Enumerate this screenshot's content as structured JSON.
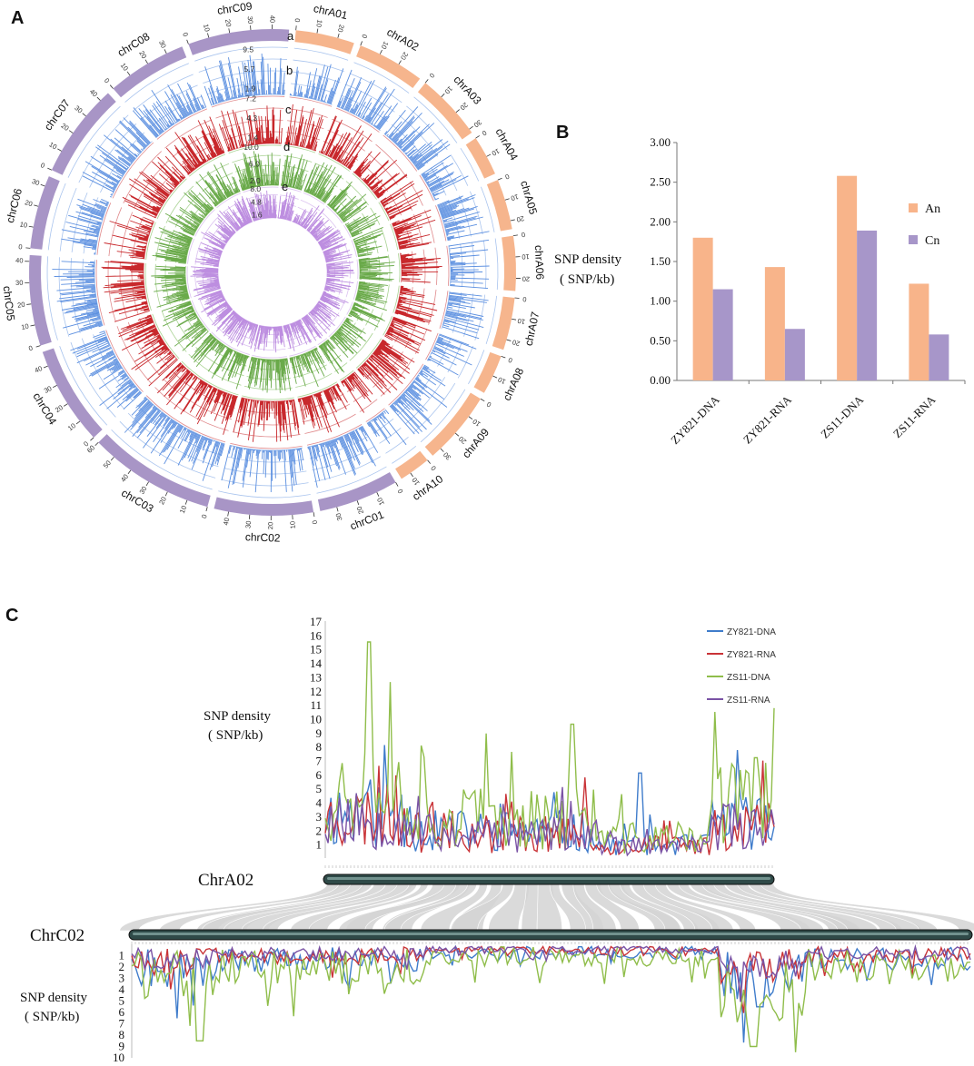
{
  "panels": {
    "A": {
      "letter": "A",
      "title": "",
      "track_letters": [
        "a",
        "b",
        "c",
        "d",
        "e"
      ],
      "chromosomes": [
        {
          "name": "chrA01",
          "group": "An",
          "ticks": [
            0,
            10,
            20
          ]
        },
        {
          "name": "chrA02",
          "group": "An",
          "ticks": [
            0,
            10,
            20
          ]
        },
        {
          "name": "chrA03",
          "group": "An",
          "ticks": [
            0,
            10,
            20,
            30
          ]
        },
        {
          "name": "chrA04",
          "group": "An",
          "ticks": [
            0,
            10
          ]
        },
        {
          "name": "chrA05",
          "group": "An",
          "ticks": [
            0,
            10,
            20
          ]
        },
        {
          "name": "chrA06",
          "group": "An",
          "ticks": [
            0,
            10,
            20
          ]
        },
        {
          "name": "chrA07",
          "group": "An",
          "ticks": [
            0,
            10,
            20
          ]
        },
        {
          "name": "chrA08",
          "group": "An",
          "ticks": [
            0,
            10
          ]
        },
        {
          "name": "chrA09",
          "group": "An",
          "ticks": [
            0,
            10,
            20,
            30
          ]
        },
        {
          "name": "chrA10",
          "group": "An",
          "ticks": [
            0,
            10
          ]
        },
        {
          "name": "chrC01",
          "group": "Cn",
          "ticks": [
            0,
            10,
            20,
            30
          ]
        },
        {
          "name": "chrC02",
          "group": "Cn",
          "ticks": [
            0,
            10,
            20,
            30,
            40
          ]
        },
        {
          "name": "chrC03",
          "group": "Cn",
          "ticks": [
            0,
            10,
            20,
            30,
            40,
            50,
            60
          ]
        },
        {
          "name": "chrC04",
          "group": "Cn",
          "ticks": [
            0,
            10,
            20,
            30,
            40
          ]
        },
        {
          "name": "chrC05",
          "group": "Cn",
          "ticks": [
            0,
            10,
            20,
            30,
            40
          ]
        },
        {
          "name": "chrC06",
          "group": "Cn",
          "ticks": [
            0,
            10,
            20,
            30
          ]
        },
        {
          "name": "chrC07",
          "group": "Cn",
          "ticks": [
            0,
            10,
            20,
            30,
            40
          ]
        },
        {
          "name": "chrC08",
          "group": "Cn",
          "ticks": [
            0,
            10,
            20,
            30
          ]
        },
        {
          "name": "chrC09",
          "group": "Cn",
          "ticks": [
            0,
            10,
            20,
            30,
            40
          ]
        }
      ],
      "tracks": [
        {
          "id": "b",
          "color": "#5b8fe0",
          "grid": "#a9c4ee",
          "labels": [
            "9.5",
            "5.7",
            "1.9"
          ]
        },
        {
          "id": "c",
          "color": "#c8282c",
          "grid": "#e08a8c",
          "labels": [
            "7.2",
            "4.3",
            "1.4"
          ]
        },
        {
          "id": "d",
          "color": "#6aaa4a",
          "grid": "#a9d393",
          "labels": [
            "10.0",
            "6.0",
            "2.0"
          ]
        },
        {
          "id": "e",
          "color": "#bd8ee0",
          "grid": "#dcc3f0",
          "labels": [
            "8.0",
            "4.8",
            "1.6"
          ]
        }
      ],
      "colors": {
        "An": "#f6b58d",
        "Cn": "#a895c6"
      }
    },
    "B": {
      "letter": "B",
      "chart_data": {
        "type": "bar",
        "title": "",
        "categories": [
          "ZY821-DNA",
          "ZY821-RNA",
          "ZS11-DNA",
          "ZS11-RNA"
        ],
        "series": [
          {
            "name": "An",
            "color": "#f8b48a",
            "values": [
              1.8,
              1.43,
              2.58,
              1.22
            ]
          },
          {
            "name": "Cn",
            "color": "#a796c9",
            "values": [
              1.15,
              0.65,
              1.89,
              0.58
            ]
          }
        ],
        "ylabel_line1": "SNP  density",
        "ylabel_line2": "( SNP/kb)",
        "yticks": [
          "0.00",
          "0.50",
          "1.00",
          "1.50",
          "2.00",
          "2.50",
          "3.00"
        ],
        "ylim": [
          0,
          3
        ],
        "legend_position": "right"
      }
    },
    "C": {
      "letter": "C",
      "chart_data": {
        "type": "line",
        "legend": [
          {
            "name": "ZY821-DNA",
            "color": "#3f7ccb"
          },
          {
            "name": "ZY821-RNA",
            "color": "#c93337"
          },
          {
            "name": "ZS11-DNA",
            "color": "#8fbd4a"
          },
          {
            "name": "ZS11-RNA",
            "color": "#7a53a5"
          }
        ],
        "top": {
          "chromosome": "ChrA02",
          "ylabel_line1": "SNP  density",
          "ylabel_line2": "( SNP/kb)",
          "yticks": [
            "1",
            "2",
            "3",
            "4",
            "5",
            "6",
            "7",
            "8",
            "9",
            "10",
            "11",
            "12",
            "13",
            "14",
            "15",
            "16",
            "17"
          ],
          "ylim": [
            0,
            17
          ],
          "peaks": [
            {
              "series": "ZS11-DNA",
              "x": 0.1,
              "y": 15.5
            },
            {
              "series": "ZS11-DNA",
              "x": 0.55,
              "y": 9.6
            },
            {
              "series": "ZY821-DNA",
              "x": 0.7,
              "y": 6.1
            },
            {
              "series": "ZS11-DNA",
              "x": 0.96,
              "y": 7.2
            }
          ]
        },
        "bottom": {
          "chromosome": "ChrC02",
          "ylabel_line1": "SNP  density",
          "ylabel_line2": "( SNP/kb)",
          "yticks": [
            "1",
            "2",
            "3",
            "4",
            "5",
            "6",
            "7",
            "8",
            "9",
            "10"
          ],
          "ylim": [
            0,
            10
          ],
          "inverted": true,
          "peaks": [
            {
              "series": "ZS11-DNA",
              "x": 0.08,
              "y": 8.5
            },
            {
              "series": "ZS11-DNA",
              "x": 0.74,
              "y": 9.0
            },
            {
              "series": "ZY821-DNA",
              "x": 0.75,
              "y": 5.5
            }
          ]
        }
      }
    }
  }
}
